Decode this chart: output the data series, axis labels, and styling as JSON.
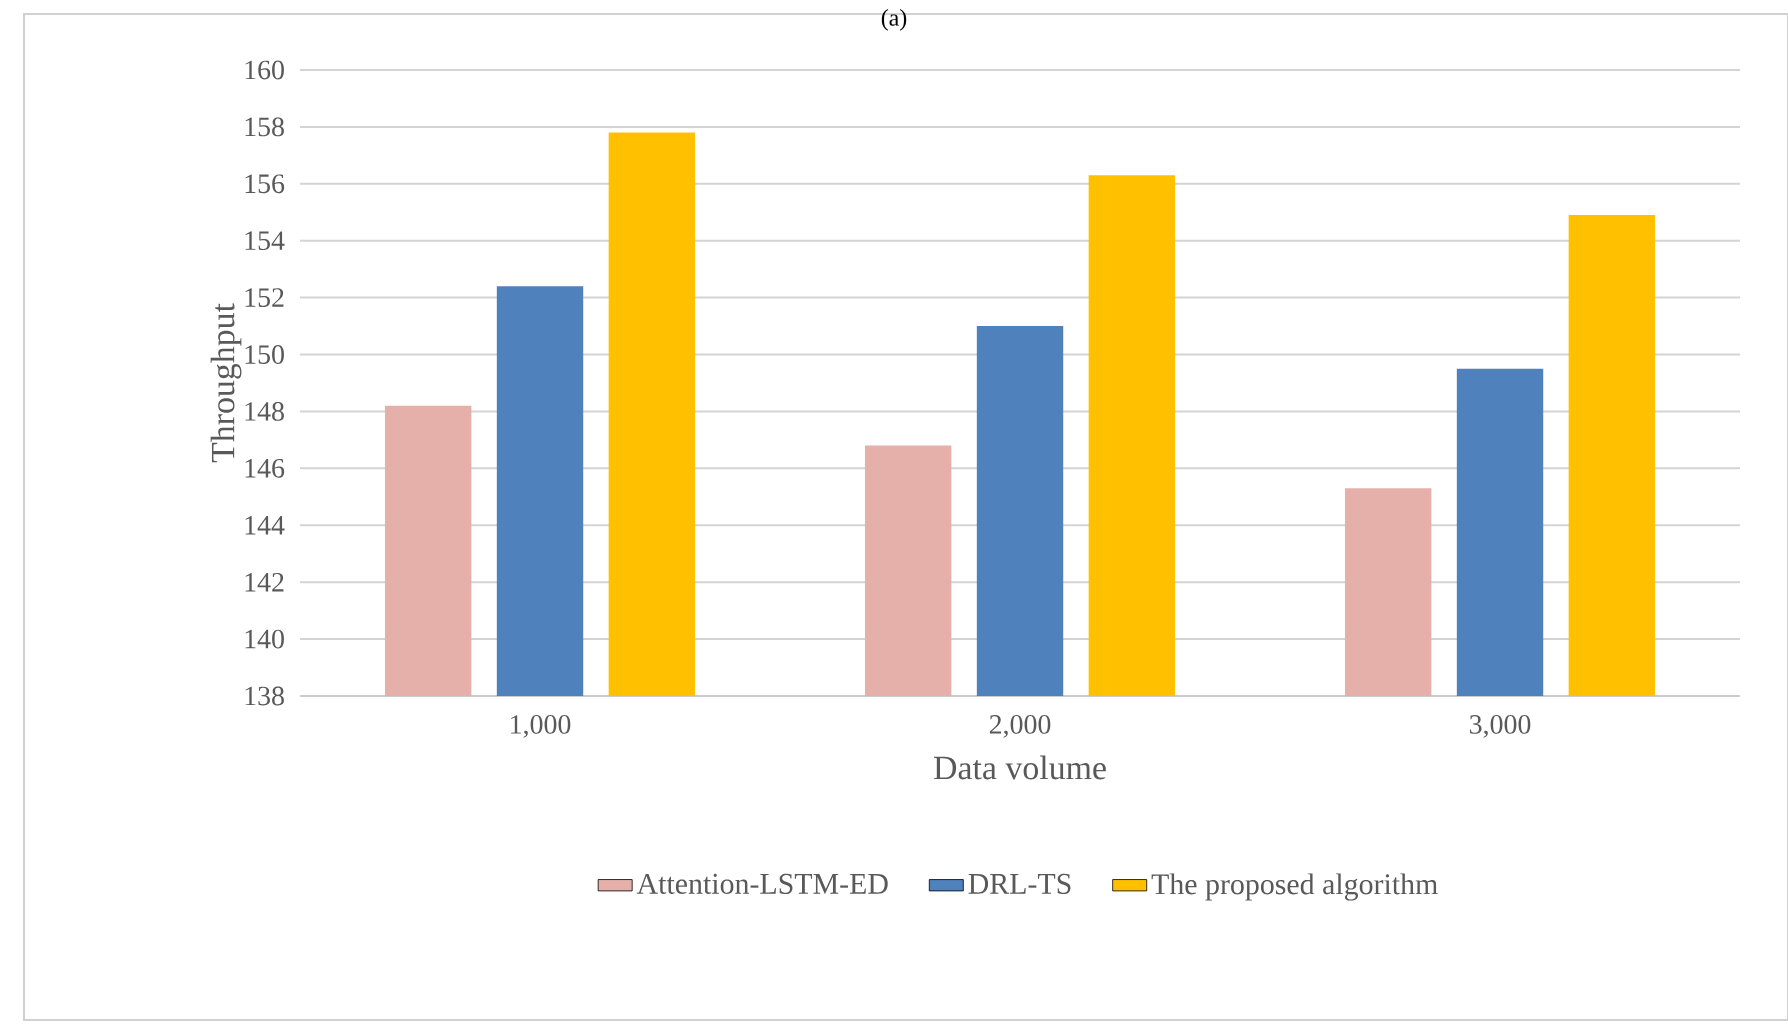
{
  "chart_data": {
    "type": "bar",
    "title": "(a)",
    "xlabel": "Data volume",
    "ylabel": "Throughput",
    "categories": [
      "1,000",
      "2,000",
      "3,000"
    ],
    "series": [
      {
        "name": "Attention-LSTM-ED",
        "color": "#e6b0aa",
        "values": [
          148.2,
          146.8,
          145.3
        ]
      },
      {
        "name": "DRL-TS",
        "color": "#4f81bd",
        "values": [
          152.4,
          151.0,
          149.5
        ]
      },
      {
        "name": "The proposed algorithm",
        "color": "#ffc000",
        "values": [
          157.8,
          156.3,
          154.9
        ]
      }
    ],
    "ylim": [
      138,
      160
    ],
    "yticks": [
      138,
      140,
      142,
      144,
      146,
      148,
      150,
      152,
      154,
      156,
      158,
      160
    ],
    "grid": "y",
    "legend": "bottom"
  }
}
